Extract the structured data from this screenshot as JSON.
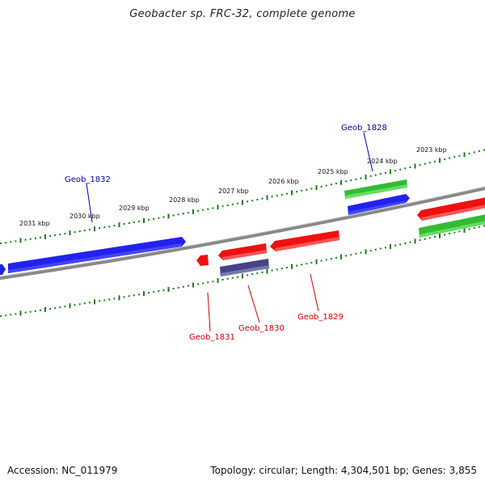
{
  "title": "Geobacter sp. FRC-32, complete genome",
  "footer": {
    "accession": "Accession: NC_011979",
    "info": "Topology: circular; Length: 4,304,501 bp; Genes: 3,855"
  },
  "colors": {
    "backbone": "#888888",
    "tick": "#1a7a1a",
    "forward_cds": "#2222ee",
    "reverse_cds": "#ee1111",
    "rna_green": "#33bb33",
    "other_purple": "#444488",
    "label_blue": "#0000aa",
    "label_red": "#cc0000"
  },
  "kbp_labels": [
    {
      "id": "2031",
      "text": "2031 kbp"
    },
    {
      "id": "2030",
      "text": "2030 kbp"
    },
    {
      "id": "2029",
      "text": "2029 kbp"
    },
    {
      "id": "2028",
      "text": "2028 kbp"
    },
    {
      "id": "2027",
      "text": "2027 kbp"
    },
    {
      "id": "2026",
      "text": "2026 kbp"
    },
    {
      "id": "2025",
      "text": "2025 kbp"
    },
    {
      "id": "2024",
      "text": "2024 kbp"
    },
    {
      "id": "2023",
      "text": "2023 kbp"
    }
  ],
  "gene_labels": {
    "geob_1828": "Geob_1828",
    "geob_1829": "Geob_1829",
    "geob_1830": "Geob_1830",
    "geob_1831": "Geob_1831",
    "geob_1832": "Geob_1832"
  }
}
